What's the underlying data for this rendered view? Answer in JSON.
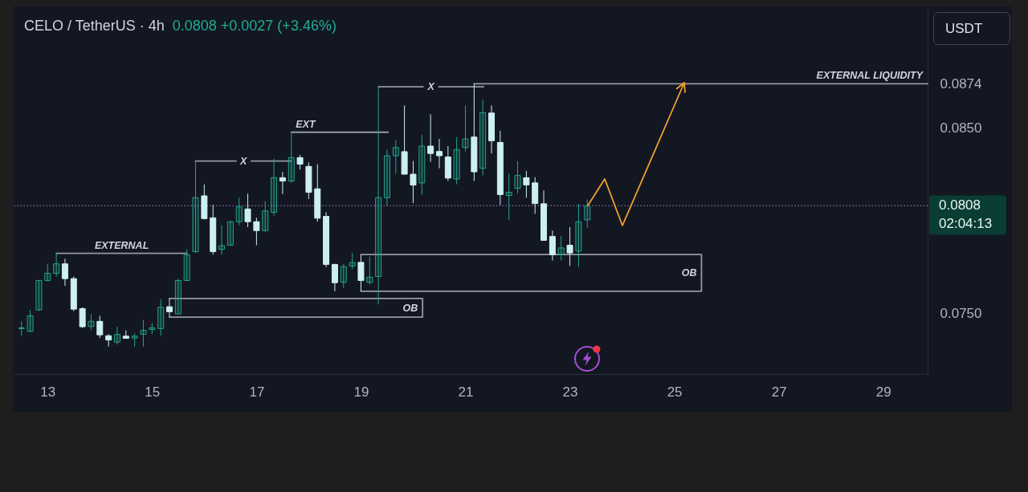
{
  "chart_data": {
    "type": "candlestick",
    "title": "CELO / TetherUS · 4h",
    "subtitle": "0.0808 +0.0027 (+3.46%)",
    "ylabel": "USDT",
    "x": [
      12.5,
      12.667,
      12.833,
      13,
      13.167,
      13.333,
      13.5,
      13.667,
      13.833,
      14,
      14.167,
      14.333,
      14.5,
      14.667,
      14.833,
      15,
      15.167,
      15.333,
      15.5,
      15.667,
      15.833,
      16,
      16.167,
      16.333,
      16.5,
      16.667,
      16.833,
      17,
      17.167,
      17.333,
      17.5,
      17.667,
      17.833,
      18,
      18.167,
      18.333,
      18.5,
      18.667,
      18.833,
      19,
      19.167,
      19.333,
      19.5,
      19.667,
      19.833,
      20,
      20.167,
      20.333,
      20.5,
      20.667,
      20.833,
      21,
      21.167,
      21.333,
      21.5,
      21.667,
      21.833,
      22,
      22.167,
      22.333,
      22.5,
      22.667,
      22.833,
      23,
      23.167,
      23.333
    ],
    "ohlc": [
      [
        0.07416,
        0.07455,
        0.07377,
        0.0742
      ],
      [
        0.07401,
        0.07517,
        0.07397,
        0.07485
      ],
      [
        0.07517,
        0.07676,
        0.07511,
        0.07676
      ],
      [
        0.07676,
        0.07766,
        0.07671,
        0.07715
      ],
      [
        0.07715,
        0.07823,
        0.07698,
        0.07766
      ],
      [
        0.07766,
        0.07794,
        0.07647,
        0.07686
      ],
      [
        0.07686,
        0.07698,
        0.0751,
        0.07521
      ],
      [
        0.07524,
        0.07531,
        0.07419,
        0.07426
      ],
      [
        0.07427,
        0.07495,
        0.07408,
        0.07455
      ],
      [
        0.07455,
        0.07485,
        0.07365,
        0.07382
      ],
      [
        0.07377,
        0.07386,
        0.07319,
        0.07354
      ],
      [
        0.07343,
        0.07426,
        0.07329,
        0.07384
      ],
      [
        0.07375,
        0.07406,
        0.07363,
        0.07363
      ],
      [
        0.07365,
        0.07391,
        0.07319,
        0.07375
      ],
      [
        0.07385,
        0.07463,
        0.07319,
        0.07406
      ],
      [
        0.07411,
        0.07445,
        0.07386,
        0.0742
      ],
      [
        0.07416,
        0.07575,
        0.07377,
        0.07531
      ],
      [
        0.07534,
        0.07579,
        0.07478,
        0.07507
      ],
      [
        0.07495,
        0.07686,
        0.07495,
        0.07676
      ],
      [
        0.07676,
        0.07845,
        0.07676,
        0.07816
      ],
      [
        0.07832,
        0.08322,
        0.07825,
        0.08124
      ],
      [
        0.08134,
        0.08196,
        0.08006,
        0.08011
      ],
      [
        0.08015,
        0.08084,
        0.07816,
        0.07832
      ],
      [
        0.07845,
        0.07975,
        0.07816,
        0.07864
      ],
      [
        0.07867,
        0.07997,
        0.07864,
        0.07994
      ],
      [
        0.07994,
        0.08124,
        0.07975,
        0.08074
      ],
      [
        0.08063,
        0.08146,
        0.07965,
        0.07994
      ],
      [
        0.07994,
        0.08015,
        0.07867,
        0.07946
      ],
      [
        0.07946,
        0.08105,
        0.07939,
        0.08052
      ],
      [
        0.08045,
        0.08334,
        0.08027,
        0.08232
      ],
      [
        0.08232,
        0.08264,
        0.08143,
        0.08214
      ],
      [
        0.08214,
        0.08478,
        0.08205,
        0.08341
      ],
      [
        0.08341,
        0.08356,
        0.08276,
        0.08305
      ],
      [
        0.08293,
        0.08315,
        0.08117,
        0.08153
      ],
      [
        0.08172,
        0.08305,
        0.07994,
        0.08013
      ],
      [
        0.08023,
        0.08045,
        0.07748,
        0.07763
      ],
      [
        0.07763,
        0.07766,
        0.07618,
        0.07664
      ],
      [
        0.07666,
        0.07766,
        0.07635,
        0.07751
      ],
      [
        0.07755,
        0.07825,
        0.07738,
        0.07773
      ],
      [
        0.07774,
        0.07816,
        0.07618,
        0.07676
      ],
      [
        0.07666,
        0.07806,
        0.07654,
        0.07694
      ],
      [
        0.07698,
        0.08724,
        0.07546,
        0.08124
      ],
      [
        0.08124,
        0.08384,
        0.08081,
        0.08351
      ],
      [
        0.08351,
        0.08435,
        0.08254,
        0.08395
      ],
      [
        0.08373,
        0.08623,
        0.08251,
        0.08251
      ],
      [
        0.08251,
        0.08322,
        0.08095,
        0.08192
      ],
      [
        0.08204,
        0.08464,
        0.08139,
        0.08403
      ],
      [
        0.08403,
        0.08575,
        0.08317,
        0.08363
      ],
      [
        0.08374,
        0.08442,
        0.08283,
        0.08351
      ],
      [
        0.08344,
        0.08403,
        0.08215,
        0.0823
      ],
      [
        0.08225,
        0.08452,
        0.08196,
        0.08384
      ],
      [
        0.08395,
        0.08623,
        0.08374,
        0.08442
      ],
      [
        0.08452,
        0.0874,
        0.08215,
        0.08264
      ],
      [
        0.08283,
        0.08655,
        0.08244,
        0.08584
      ],
      [
        0.08582,
        0.08623,
        0.08363,
        0.08432
      ],
      [
        0.08423,
        0.08486,
        0.08085,
        0.08141
      ],
      [
        0.08136,
        0.08254,
        0.08004,
        0.08153
      ],
      [
        0.08175,
        0.08322,
        0.08146,
        0.08244
      ],
      [
        0.08232,
        0.08269,
        0.08124,
        0.08193
      ],
      [
        0.08204,
        0.08235,
        0.08037,
        0.08092
      ],
      [
        0.08091,
        0.08163,
        0.07893,
        0.07893
      ],
      [
        0.07914,
        0.07946,
        0.07784,
        0.07816
      ],
      [
        0.07816,
        0.07917,
        0.07784,
        0.07852
      ],
      [
        0.07867,
        0.07965,
        0.07755,
        0.07825
      ],
      [
        0.07835,
        0.08091,
        0.07748,
        0.07994
      ],
      [
        0.08004,
        0.08114,
        0.07961,
        0.0808
      ]
    ],
    "colors": [
      "#22a58f",
      "#22a58f",
      "#22a58f",
      "#22a58f",
      "#22a58f",
      "#cdeff2",
      "#cdeff2",
      "#cdeff2",
      "#22a58f",
      "#cdeff2",
      "#cdeff2",
      "#22a58f",
      "#cdeff2",
      "#22a58f",
      "#22a58f",
      "#22a58f",
      "#22a58f",
      "#cdeff2",
      "#22a58f",
      "#22a58f",
      "#22a58f",
      "#cdeff2",
      "#cdeff2",
      "#22a58f",
      "#22a58f",
      "#22a58f",
      "#cdeff2",
      "#cdeff2",
      "#22a58f",
      "#22a58f",
      "#cdeff2",
      "#22a58f",
      "#cdeff2",
      "#cdeff2",
      "#cdeff2",
      "#cdeff2",
      "#cdeff2",
      "#22a58f",
      "#22a58f",
      "#cdeff2",
      "#22a58f",
      "#22a58f",
      "#22a58f",
      "#22a58f",
      "#cdeff2",
      "#cdeff2",
      "#22a58f",
      "#cdeff2",
      "#cdeff2",
      "#cdeff2",
      "#22a58f",
      "#22a58f",
      "#cdeff2",
      "#22a58f",
      "#cdeff2",
      "#cdeff2",
      "#22a58f",
      "#22a58f",
      "#cdeff2",
      "#cdeff2",
      "#cdeff2",
      "#cdeff2",
      "#22a58f",
      "#cdeff2",
      "#22a58f",
      "#22a58f"
    ],
    "series": [
      {
        "type": "line",
        "color": "#9598a1",
        "x": [
          13.167,
          15.667
        ],
        "values": [
          0.07823,
          0.07823
        ]
      },
      {
        "type": "line",
        "color": "#9598a1",
        "x": [
          15.833,
          16.61,
          16.75,
          16.9,
          17.667
        ],
        "values": [
          0.08322,
          0.08322,
          null,
          0.08322,
          0.08322
        ]
      },
      {
        "type": "line",
        "color": "#9598a1",
        "x": [
          17.667,
          19.518
        ],
        "values": [
          0.08478,
          0.08478
        ]
      },
      {
        "type": "line",
        "color": "#9598a1",
        "x": [
          19.333,
          20.19,
          20.34,
          20.49,
          21.35
        ],
        "values": [
          0.08724,
          0.08724,
          null,
          0.08724,
          0.08724
        ]
      },
      {
        "type": "line",
        "color": "#9598a1",
        "x": [
          21.167,
          29.85
        ],
        "values": [
          0.0874,
          0.0874
        ]
      },
      {
        "type": "line",
        "color": "#9598a1",
        "x": [
          15.333,
          20.18,
          20.18,
          15.333
        ],
        "values": [
          0.07579,
          0.07579,
          0.07478,
          0.07478
        ]
      },
      {
        "type": "line",
        "color": "#9598a1",
        "x": [
          19,
          25.52,
          25.52,
          19
        ],
        "values": [
          0.07816,
          0.07816,
          0.07618,
          0.07618
        ]
      }
    ],
    "annotations": [
      {
        "text": "EXTERNAL",
        "x": 14.42,
        "y": 0.07823
      },
      "X",
      {
        "text": "EXT",
        "x": 17.94,
        "y": 0.08478
      },
      "X",
      {
        "text": "OB",
        "x": 20.18,
        "y": 0.07528
      },
      {
        "text": "OB",
        "x": 25.52,
        "y": 0.07717
      },
      {
        "text": "EXTERNAL LIQUIDITY",
        "x": 28.74,
        "y": 0.0874
      }
    ],
    "ref_lines": [
      {
        "axis": "y",
        "value": 0.0808,
        "label": "0.0808 02:04:13",
        "color": "#8e6bb0",
        "line_style": "dotted"
      }
    ],
    "xlim": [
      12.35,
      29.85
    ],
    "xticks": [
      13,
      15,
      17,
      19,
      21,
      23,
      25,
      27,
      29
    ],
    "ylim": [
      0.0717,
      0.0915
    ],
    "yticks": [
      {
        "value": 0.075,
        "label": "0.0750"
      },
      {
        "value": 0.085,
        "label": "0.0850"
      },
      {
        "value": 0.0874,
        "label": "0.0874"
      }
    ]
  }
}
